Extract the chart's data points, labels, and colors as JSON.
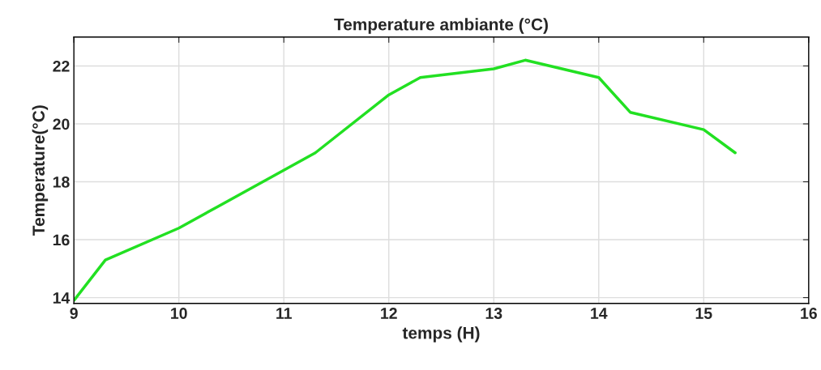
{
  "chart_data": {
    "type": "line",
    "title": "Temperature ambiante (°C)",
    "xlabel": "temps (H)",
    "ylabel": "Temperature(°C)",
    "x": [
      9,
      9.3,
      10,
      11.3,
      12,
      12.3,
      13,
      13.3,
      14,
      14.3,
      15,
      15.3
    ],
    "series": [
      {
        "color": "#22e022",
        "values": [
          13.9,
          15.3,
          16.4,
          19.0,
          21.0,
          21.6,
          21.9,
          22.2,
          21.6,
          20.4,
          19.8,
          19.0
        ]
      }
    ],
    "xlim": [
      9,
      16
    ],
    "xticks": [
      9,
      10,
      11,
      12,
      13,
      14,
      15,
      16
    ],
    "ylim": [
      13.8,
      23
    ],
    "yticks": [
      14,
      16,
      18,
      20,
      22
    ],
    "grid": true,
    "marker": "none",
    "line_style": "solid"
  }
}
